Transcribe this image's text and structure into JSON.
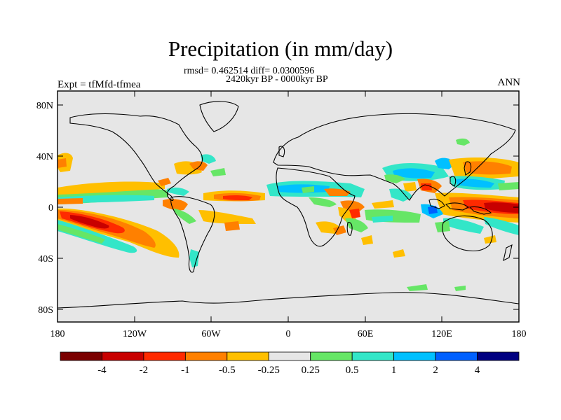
{
  "title": "Precipitation (in mm/day)",
  "stats": "rmsd= 0.462514 diff= 0.0300596",
  "period": "2420kyr BP - 0000kyr BP",
  "expt_label": "Expt = tfMfd-tfmea",
  "season": "ANN",
  "lat_labels": [
    "80N",
    "40N",
    "0",
    "40S",
    "80S"
  ],
  "lon_labels": [
    "180",
    "120W",
    "60W",
    "0",
    "60E",
    "120E",
    "180"
  ],
  "colorbar": {
    "colors": [
      "#7a0000",
      "#c80000",
      "#ff2a00",
      "#ff8000",
      "#ffbf00",
      "#e6e6e6",
      "#66e666",
      "#33e6c8",
      "#00c0ff",
      "#0060ff",
      "#000080"
    ],
    "labels": [
      "-4",
      "-2",
      "-1",
      "-0.5",
      "-0.25",
      "0.25",
      "0.5",
      "1",
      "2",
      "4"
    ]
  }
}
